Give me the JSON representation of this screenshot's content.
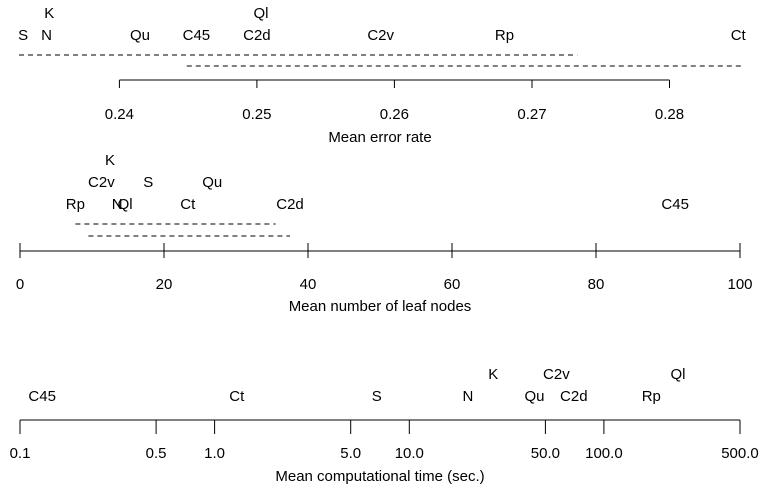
{
  "chart_data": [
    {
      "type": "scatter",
      "xlabel": "Mean error rate",
      "ticks": [
        "0.24",
        "0.25",
        "0.26",
        "0.27",
        "0.28"
      ],
      "tick_values": [
        0.24,
        0.25,
        0.26,
        0.27,
        0.28
      ],
      "xlim": [
        0.2327,
        0.2852
      ],
      "points": [
        {
          "label": "S",
          "x": 0.233,
          "row": 0
        },
        {
          "label": "N",
          "x": 0.2347,
          "row": 0
        },
        {
          "label": "K",
          "x": 0.2349,
          "row": 1
        },
        {
          "label": "Qu",
          "x": 0.2415,
          "row": 0
        },
        {
          "label": "C45",
          "x": 0.2456,
          "row": 0
        },
        {
          "label": "C2d",
          "x": 0.25,
          "row": 0
        },
        {
          "label": "Ql",
          "x": 0.2503,
          "row": 1
        },
        {
          "label": "C2v",
          "x": 0.259,
          "row": 0
        },
        {
          "label": "Rp",
          "x": 0.268,
          "row": 0
        },
        {
          "label": "Ct",
          "x": 0.285,
          "row": 0
        }
      ],
      "groups": [
        [
          0.2327,
          0.2733
        ],
        [
          0.2449,
          0.2852
        ]
      ]
    },
    {
      "type": "scatter",
      "xlabel": "Mean number of leaf nodes",
      "ticks": [
        "0",
        "20",
        "40",
        "60",
        "80",
        "100"
      ],
      "tick_values": [
        0,
        20,
        40,
        60,
        80,
        100
      ],
      "xlim": [
        0,
        100
      ],
      "points": [
        {
          "label": "Rp",
          "x": 7.7,
          "row": 0
        },
        {
          "label": "N",
          "x": 13.5,
          "row": 0
        },
        {
          "label": "Ql",
          "x": 14.6,
          "row": 0
        },
        {
          "label": "C2v",
          "x": 11.3,
          "row": 1
        },
        {
          "label": "K",
          "x": 12.5,
          "row": 2
        },
        {
          "label": "S",
          "x": 17.8,
          "row": 1
        },
        {
          "label": "Ct",
          "x": 23.3,
          "row": 0
        },
        {
          "label": "Qu",
          "x": 26.7,
          "row": 1
        },
        {
          "label": "C2d",
          "x": 37.5,
          "row": 0
        },
        {
          "label": "C45",
          "x": 91.0,
          "row": 0
        }
      ],
      "groups": [
        [
          7.7,
          35.5
        ],
        [
          9.5,
          37.5
        ]
      ]
    },
    {
      "type": "scatter",
      "xlabel": "Mean computational time (sec.)",
      "scale": "log",
      "ticks": [
        "0.1",
        "0.5",
        "1.0",
        "5.0",
        "10.0",
        "50.0",
        "100.0",
        "500.0"
      ],
      "tick_values": [
        0.1,
        0.5,
        1.0,
        5.0,
        10.0,
        50.0,
        100.0,
        500.0
      ],
      "xlim": [
        0.1,
        500
      ],
      "points": [
        {
          "label": "C45",
          "x": 0.13,
          "row": 0
        },
        {
          "label": "Ct",
          "x": 1.3,
          "row": 0
        },
        {
          "label": "S",
          "x": 6.8,
          "row": 0
        },
        {
          "label": "N",
          "x": 20,
          "row": 0
        },
        {
          "label": "K",
          "x": 27,
          "row": 1
        },
        {
          "label": "Qu",
          "x": 44,
          "row": 0
        },
        {
          "label": "C2v",
          "x": 57,
          "row": 1
        },
        {
          "label": "C2d",
          "x": 70,
          "row": 0
        },
        {
          "label": "Rp",
          "x": 175,
          "row": 0
        },
        {
          "label": "Ql",
          "x": 240,
          "row": 1
        }
      ]
    }
  ]
}
